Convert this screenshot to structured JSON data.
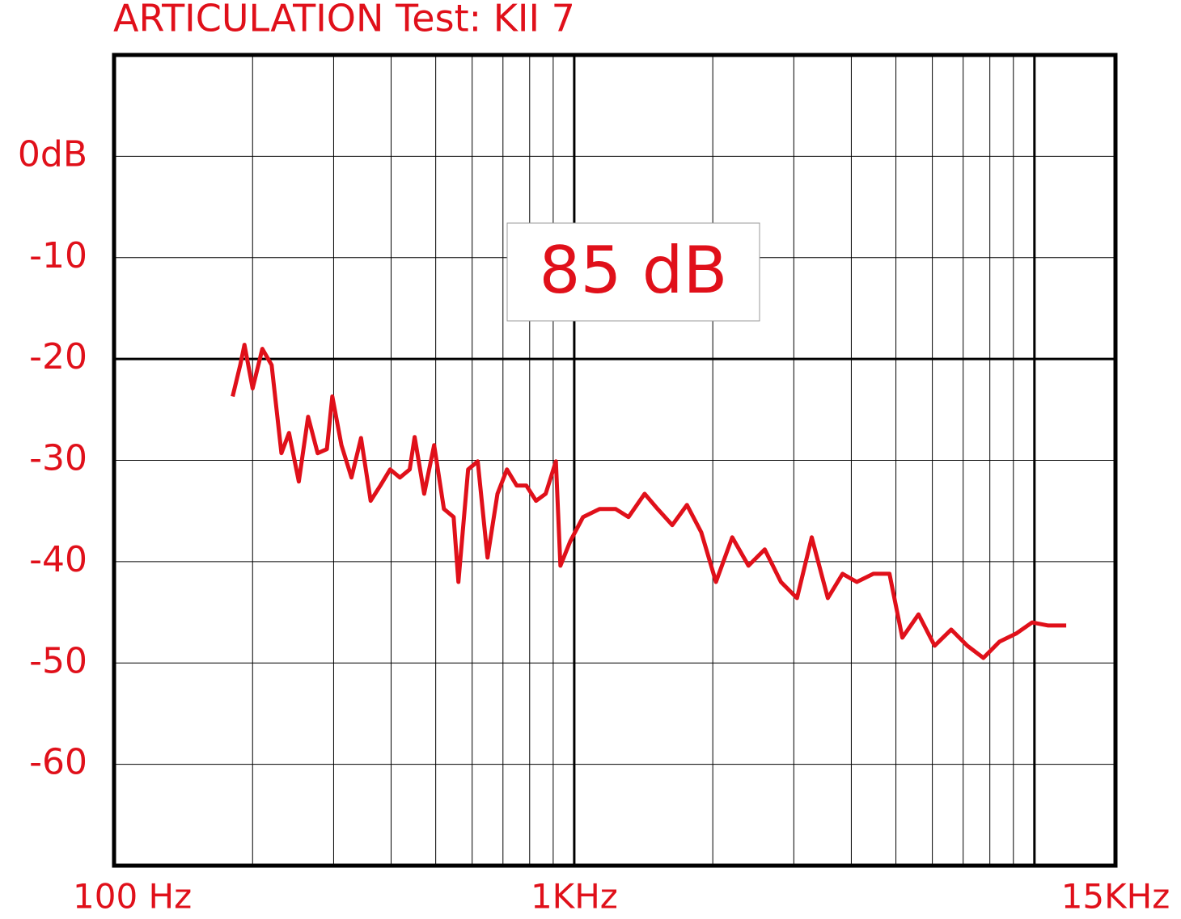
{
  "chart_data": {
    "type": "line",
    "title": "ARTICULATION Test: KII 7",
    "annotation": "85 dB",
    "x_scale": "log",
    "xlim": [
      100,
      15000
    ],
    "xticks": [
      {
        "value": 100,
        "label": "100 Hz"
      },
      {
        "value": 1000,
        "label": "1KHz"
      },
      {
        "value": 15000,
        "label": "15KHz"
      }
    ],
    "x_minor_grid": [
      200,
      300,
      400,
      500,
      600,
      700,
      800,
      900,
      2000,
      3000,
      4000,
      5000,
      6000,
      7000,
      8000,
      9000
    ],
    "x_major_grid": [
      1000,
      10000
    ],
    "ylim": [
      -70,
      10
    ],
    "yticks": [
      {
        "value": 0,
        "label": "0dB"
      },
      -10,
      -20,
      -30,
      -40,
      -50,
      -60
    ],
    "y_major_grid": [
      -20
    ],
    "grid": true,
    "x": [
      181,
      188,
      192,
      200,
      210,
      220,
      231,
      240,
      252,
      264,
      277,
      290,
      298,
      312,
      328,
      344,
      361,
      379,
      398,
      418,
      439,
      450,
      472,
      496,
      521,
      547,
      560,
      588,
      617,
      648,
      681,
      714,
      750,
      787,
      826,
      867,
      912,
      933,
      980,
      1045,
      1135,
      1230,
      1312,
      1422,
      1518,
      1633,
      1757,
      1888,
      2032,
      2204,
      2391,
      2594,
      2812,
      3048,
      3281,
      3556,
      3828,
      4111,
      4467,
      4842,
      5164,
      5598,
      6067,
      6592,
      7145,
      7745,
      8395,
      9120,
      9886,
      10715,
      11722
    ],
    "series": [
      {
        "color": "#e0101a",
        "values": [
          -23.7,
          -20.6,
          -18.6,
          -22.9,
          -19,
          -20.6,
          -29.3,
          -27.3,
          -32.1,
          -25.7,
          -29.3,
          -28.9,
          -23.7,
          -28.5,
          -31.7,
          -27.8,
          -34,
          -32.5,
          -30.9,
          -31.7,
          -30.9,
          -27.7,
          -33.3,
          -28.5,
          -34.8,
          -35.6,
          -42,
          -30.9,
          -30.1,
          -39.6,
          -33.3,
          -30.9,
          -32.5,
          -32.5,
          -34,
          -33.3,
          -30.1,
          -40.4,
          -38,
          -35.6,
          -34.8,
          -34.8,
          -35.6,
          -33.3,
          -34.8,
          -36.4,
          -34.4,
          -37.1,
          -42,
          -37.6,
          -40.4,
          -38.8,
          -42,
          -43.6,
          -37.6,
          -43.6,
          -41.2,
          -42,
          -41.2,
          -41.2,
          -47.5,
          -45.2,
          -48.3,
          -46.7,
          -48.3,
          -49.5,
          -47.9,
          -47.1,
          -46,
          -46.3,
          -46.3
        ]
      }
    ]
  }
}
